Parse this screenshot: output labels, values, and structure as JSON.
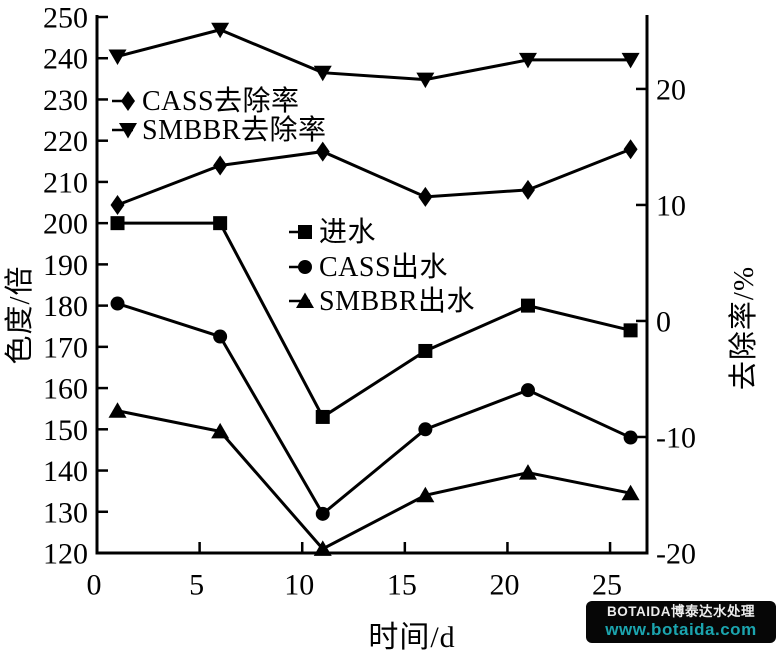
{
  "chart_data": {
    "type": "line",
    "title": "",
    "xlabel": "时间/d",
    "ylabel_left": "色度/倍",
    "ylabel_right": "去除率/%",
    "x": [
      1,
      6,
      11,
      16,
      21,
      26
    ],
    "xlim": [
      0,
      26.8
    ],
    "xticks": [
      0,
      5,
      10,
      15,
      20,
      25
    ],
    "ylim_left": [
      120,
      250
    ],
    "yticks_left": [
      120,
      130,
      140,
      150,
      160,
      170,
      180,
      190,
      200,
      210,
      220,
      230,
      240,
      250
    ],
    "ylim_right": [
      -20,
      26.2
    ],
    "yticks_right": [
      -20,
      -10,
      0,
      10,
      20
    ],
    "grid": false,
    "legend_positions": [
      "upper-left-inside",
      "center-inside"
    ],
    "line_color": "#000000",
    "background": "#ffffff",
    "series": [
      {
        "name": "进水",
        "axis": "left",
        "marker": "square",
        "values": [
          200,
          200,
          153,
          169,
          180,
          174
        ]
      },
      {
        "name": "CASS出水",
        "axis": "left",
        "marker": "circle",
        "values": [
          180.5,
          172.5,
          129.5,
          150,
          159.5,
          148
        ]
      },
      {
        "name": "SMBBR出水",
        "axis": "left",
        "marker": "triangle-up",
        "values": [
          154.5,
          149.5,
          121,
          134,
          139.5,
          134.5
        ]
      },
      {
        "name": "CASS去除率",
        "axis": "right",
        "marker": "diamond",
        "values": [
          10,
          13.4,
          14.6,
          10.7,
          11.3,
          14.8
        ]
      },
      {
        "name": "SMBBR去除率",
        "axis": "right",
        "marker": "triangle-down",
        "values": [
          22.8,
          25.1,
          21.4,
          20.8,
          22.5,
          22.5
        ]
      }
    ]
  },
  "watermark": {
    "line1": "BOTAIDA博泰达水处理",
    "line2": "www.botaida.com",
    "bg_color": "#060606",
    "line1_color": "#ececec",
    "line2_color": "#1ba4ae"
  }
}
